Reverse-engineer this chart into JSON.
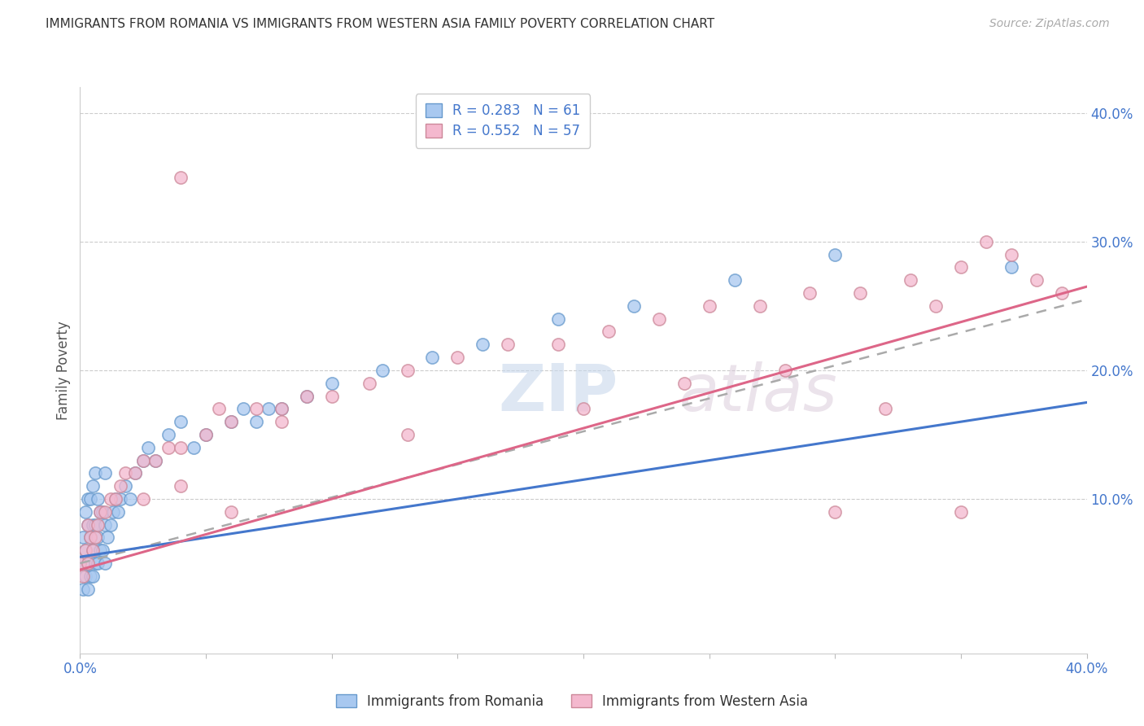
{
  "title": "IMMIGRANTS FROM ROMANIA VS IMMIGRANTS FROM WESTERN ASIA FAMILY POVERTY CORRELATION CHART",
  "source": "Source: ZipAtlas.com",
  "ylabel": "Family Poverty",
  "legend_romania": "R = 0.283   N = 61",
  "legend_western_asia": "R = 0.552   N = 57",
  "legend_label_romania": "Immigrants from Romania",
  "legend_label_western_asia": "Immigrants from Western Asia",
  "color_romania_fill": "#A8C8F0",
  "color_romania_edge": "#6699CC",
  "color_western_asia_fill": "#F4B8CE",
  "color_western_asia_edge": "#CC8899",
  "color_romania_line": "#4477CC",
  "color_western_asia_line": "#DD6688",
  "color_dashed_line": "#AAAAAA",
  "xmin": 0.0,
  "xmax": 0.4,
  "ymin": -0.02,
  "ymax": 0.42,
  "romania_x": [
    0.0,
    0.001,
    0.001,
    0.002,
    0.002,
    0.002,
    0.003,
    0.003,
    0.003,
    0.003,
    0.004,
    0.004,
    0.004,
    0.005,
    0.005,
    0.005,
    0.005,
    0.006,
    0.006,
    0.006,
    0.007,
    0.007,
    0.007,
    0.008,
    0.008,
    0.009,
    0.009,
    0.01,
    0.01,
    0.01,
    0.011,
    0.012,
    0.013,
    0.014,
    0.015,
    0.016,
    0.018,
    0.02,
    0.022,
    0.025,
    0.027,
    0.03,
    0.035,
    0.04,
    0.045,
    0.05,
    0.06,
    0.065,
    0.07,
    0.075,
    0.08,
    0.09,
    0.1,
    0.12,
    0.14,
    0.16,
    0.19,
    0.22,
    0.26,
    0.3,
    0.37
  ],
  "romania_y": [
    0.05,
    0.03,
    0.07,
    0.04,
    0.06,
    0.09,
    0.03,
    0.05,
    0.08,
    0.1,
    0.04,
    0.07,
    0.1,
    0.04,
    0.06,
    0.08,
    0.11,
    0.05,
    0.08,
    0.12,
    0.05,
    0.07,
    0.1,
    0.06,
    0.09,
    0.06,
    0.09,
    0.05,
    0.08,
    0.12,
    0.07,
    0.08,
    0.09,
    0.1,
    0.09,
    0.1,
    0.11,
    0.1,
    0.12,
    0.13,
    0.14,
    0.13,
    0.15,
    0.16,
    0.14,
    0.15,
    0.16,
    0.17,
    0.16,
    0.17,
    0.17,
    0.18,
    0.19,
    0.2,
    0.21,
    0.22,
    0.24,
    0.25,
    0.27,
    0.29,
    0.28
  ],
  "western_asia_x": [
    0.0,
    0.001,
    0.002,
    0.003,
    0.003,
    0.004,
    0.005,
    0.006,
    0.007,
    0.008,
    0.01,
    0.012,
    0.014,
    0.016,
    0.018,
    0.022,
    0.025,
    0.03,
    0.035,
    0.04,
    0.05,
    0.06,
    0.07,
    0.08,
    0.09,
    0.1,
    0.115,
    0.13,
    0.15,
    0.17,
    0.19,
    0.21,
    0.23,
    0.25,
    0.27,
    0.29,
    0.31,
    0.33,
    0.35,
    0.37,
    0.06,
    0.025,
    0.04,
    0.055,
    0.2,
    0.24,
    0.28,
    0.32,
    0.34,
    0.36,
    0.38,
    0.39,
    0.04,
    0.08,
    0.13,
    0.3,
    0.35
  ],
  "western_asia_y": [
    0.05,
    0.04,
    0.06,
    0.05,
    0.08,
    0.07,
    0.06,
    0.07,
    0.08,
    0.09,
    0.09,
    0.1,
    0.1,
    0.11,
    0.12,
    0.12,
    0.13,
    0.13,
    0.14,
    0.14,
    0.15,
    0.16,
    0.17,
    0.17,
    0.18,
    0.18,
    0.19,
    0.2,
    0.21,
    0.22,
    0.22,
    0.23,
    0.24,
    0.25,
    0.25,
    0.26,
    0.26,
    0.27,
    0.28,
    0.29,
    0.09,
    0.1,
    0.11,
    0.17,
    0.17,
    0.19,
    0.2,
    0.17,
    0.25,
    0.3,
    0.27,
    0.26,
    0.35,
    0.16,
    0.15,
    0.09,
    0.09
  ],
  "line_romania_x0": 0.0,
  "line_romania_y0": 0.055,
  "line_romania_x1": 0.4,
  "line_romania_y1": 0.175,
  "line_wa_x0": 0.0,
  "line_wa_y0": 0.045,
  "line_wa_x1": 0.4,
  "line_wa_y1": 0.265,
  "line_dash_x0": 0.0,
  "line_dash_y0": 0.05,
  "line_dash_x1": 0.4,
  "line_dash_y1": 0.255
}
